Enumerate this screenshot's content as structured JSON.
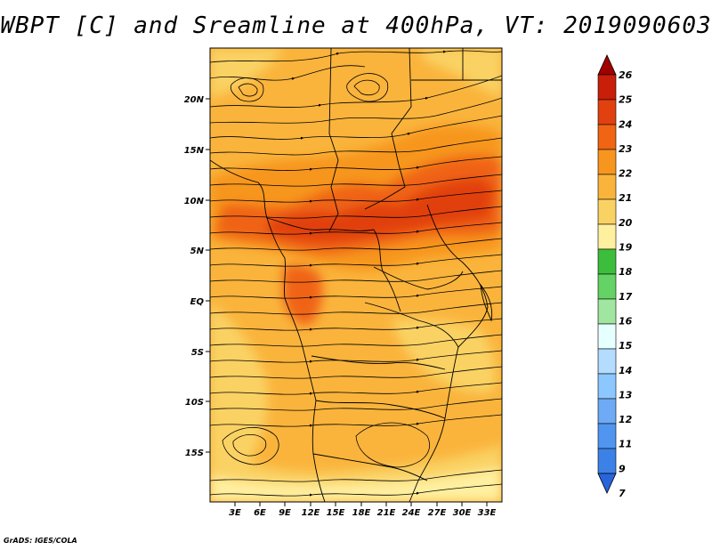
{
  "title": "WBPT [C] and Sreamline at 400hPa, VT: 2019090603",
  "credit": "GrADS: IGES/COLA",
  "map": {
    "lon_labels": [
      "3E",
      "6E",
      "9E",
      "12E",
      "15E",
      "18E",
      "21E",
      "24E",
      "27E",
      "30E",
      "33E"
    ],
    "lat_labels": [
      "20N",
      "15N",
      "10N",
      "5N",
      "EQ",
      "5S",
      "10S",
      "15S"
    ]
  },
  "colorbar": {
    "levels": [
      "26",
      "25",
      "24",
      "23",
      "22",
      "21",
      "20",
      "19",
      "18",
      "17",
      "16",
      "15",
      "14",
      "13",
      "12",
      "11",
      "9",
      "7"
    ],
    "colors": [
      "#a00000",
      "#c81e0a",
      "#e1410f",
      "#f06414",
      "#f7961e",
      "#fab43c",
      "#fad264",
      "#fff0a0",
      "#3cbe3c",
      "#64d264",
      "#a0e6a0",
      "#e6ffff",
      "#b4dcff",
      "#8cc8ff",
      "#6eaaf5",
      "#5096f0",
      "#3c82e6",
      "#2864dc"
    ]
  }
}
